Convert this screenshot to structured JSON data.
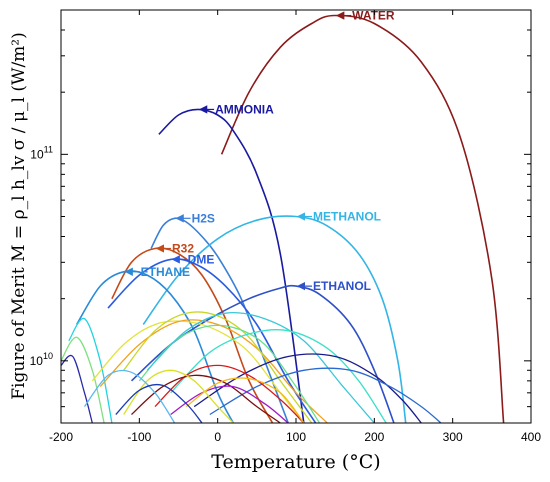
{
  "chart_data": {
    "type": "line",
    "xlabel": "Temperature (°C)",
    "ylabel": "Figure of Merit M = ρ_l h_lv σ / μ_l (W/m²)",
    "xlim": [
      -200,
      400
    ],
    "ylim": [
      5000000000.0,
      500000000000.0
    ],
    "yscale": "log",
    "grid": false,
    "legend": "none",
    "x_ticks": [
      -200,
      -100,
      0,
      100,
      200,
      300,
      400
    ],
    "x_tick_labels": [
      "-200",
      "-100",
      "0",
      "100",
      "200",
      "300",
      "400"
    ],
    "y_ticks": [
      10000000000.0,
      100000000000.0
    ],
    "series": [
      {
        "name": "WATER",
        "color": "#8b1a1a",
        "x": [
          5,
          40,
          80,
          120,
          150,
          200,
          260,
          310,
          350,
          365
        ],
        "y": [
          100000000000.0,
          200000000000.0,
          330000000000.0,
          430000000000.0,
          470000000000.0,
          430000000000.0,
          280000000000.0,
          120000000000.0,
          25000000000.0,
          5000000000.0
        ]
      },
      {
        "name": "AMMONIA",
        "color": "#1a1aa0",
        "x": [
          -75,
          -50,
          -25,
          0,
          20,
          50,
          80,
          110
        ],
        "y": [
          125000000000.0,
          155000000000.0,
          165000000000.0,
          155000000000.0,
          130000000000.0,
          80000000000.0,
          33000000000.0,
          5000000000.0
        ]
      },
      {
        "name": "H2S",
        "color": "#3a7fd8",
        "x": [
          -85,
          -70,
          -55,
          -40,
          -20,
          0,
          30,
          60,
          90
        ],
        "y": [
          35000000000.0,
          45000000000.0,
          49000000000.0,
          47000000000.0,
          40000000000.0,
          32000000000.0,
          20000000000.0,
          10000000000.0,
          5000000000.0
        ]
      },
      {
        "name": "METHANOL",
        "color": "#33b5e6",
        "x": [
          -95,
          -50,
          0,
          50,
          100,
          140,
          180,
          210,
          230,
          240
        ],
        "y": [
          15000000000.0,
          26000000000.0,
          39000000000.0,
          48000000000.0,
          50000000000.0,
          45000000000.0,
          33000000000.0,
          20000000000.0,
          10000000000.0,
          5000000000.0
        ]
      },
      {
        "name": "R32",
        "color": "#c44a1a",
        "x": [
          -135,
          -110,
          -80,
          -50,
          -20,
          10,
          40,
          70
        ],
        "y": [
          20000000000.0,
          30000000000.0,
          35000000000.0,
          33000000000.0,
          26000000000.0,
          16000000000.0,
          8000000000.0,
          5000000000.0
        ]
      },
      {
        "name": "DME",
        "color": "#2a5be0",
        "x": [
          -140,
          -100,
          -60,
          -25,
          10,
          50,
          90,
          125
        ],
        "y": [
          18000000000.0,
          26000000000.0,
          31000000000.0,
          29000000000.0,
          23000000000.0,
          15000000000.0,
          8000000000.0,
          5000000000.0
        ]
      },
      {
        "name": "ETHANE",
        "color": "#2a8ad8",
        "x": [
          -180,
          -150,
          -120,
          -90,
          -60,
          -30,
          0,
          20
        ],
        "y": [
          15000000000.0,
          23000000000.0,
          27000000000.0,
          26000000000.0,
          21000000000.0,
          14000000000.0,
          7000000000.0,
          5000000000.0
        ]
      },
      {
        "name": "ETHANOL",
        "color": "#2e50c8",
        "x": [
          -110,
          -60,
          -10,
          40,
          80,
          100,
          130,
          170,
          200,
          225
        ],
        "y": [
          8000000000.0,
          12000000000.0,
          16000000000.0,
          20000000000.0,
          22500000000.0,
          23000000000.0,
          21000000000.0,
          15000000000.0,
          9000000000.0,
          5000000000.0
        ]
      },
      {
        "name": "",
        "color": "#22d4e0",
        "x": [
          -190,
          -170,
          -150,
          -135
        ],
        "y": [
          12500000000.0,
          16000000000.0,
          10000000000.0,
          5000000000.0
        ]
      },
      {
        "name": "",
        "color": "#7fe07f",
        "x": [
          -200,
          -180,
          -160,
          -145
        ],
        "y": [
          10000000000.0,
          13000000000.0,
          9000000000.0,
          5000000000.0
        ]
      },
      {
        "name": "",
        "color": "#2a2aa8",
        "x": [
          -200,
          -185,
          -170,
          -160
        ],
        "y": [
          9500000000.0,
          10500000000.0,
          7000000000.0,
          5000000000.0
        ]
      },
      {
        "name": "",
        "color": "#e3e33a",
        "x": [
          -160,
          -120,
          -80,
          -40,
          0,
          40,
          80,
          110
        ],
        "y": [
          8000000000.0,
          12000000000.0,
          15000000000.0,
          15500000000.0,
          14000000000.0,
          11000000000.0,
          7000000000.0,
          5000000000.0
        ]
      },
      {
        "name": "",
        "color": "#f5a01a",
        "x": [
          -150,
          -100,
          -50,
          0,
          50,
          100,
          140
        ],
        "y": [
          7500000000.0,
          12000000000.0,
          15500000000.0,
          15000000000.0,
          11500000000.0,
          7000000000.0,
          5000000000.0
        ]
      },
      {
        "name": "",
        "color": "#c8d628",
        "x": [
          -120,
          -80,
          -40,
          0,
          40,
          80,
          120
        ],
        "y": [
          9000000000.0,
          14000000000.0,
          17000000000.0,
          16500000000.0,
          13000000000.0,
          8000000000.0,
          5000000000.0
        ]
      },
      {
        "name": "",
        "color": "#66e08c",
        "x": [
          -100,
          -60,
          -20,
          20,
          60,
          100,
          130
        ],
        "y": [
          8000000000.0,
          12000000000.0,
          14500000000.0,
          14500000000.0,
          12000000000.0,
          7500000000.0,
          5000000000.0
        ]
      },
      {
        "name": "",
        "color": "#3ac8d8",
        "x": [
          -90,
          -40,
          10,
          60,
          110,
          160,
          200
        ],
        "y": [
          9000000000.0,
          14000000000.0,
          17000000000.0,
          16000000000.0,
          12500000000.0,
          7500000000.0,
          5000000000.0
        ]
      },
      {
        "name": "",
        "color": "#3ae0c8",
        "x": [
          -60,
          -10,
          40,
          90,
          140,
          180,
          215
        ],
        "y": [
          7000000000.0,
          11000000000.0,
          13500000000.0,
          14000000000.0,
          11500000000.0,
          8000000000.0,
          5000000000.0
        ]
      },
      {
        "name": "",
        "color": "#1a1a8c",
        "x": [
          -30,
          30,
          90,
          150,
          200,
          235,
          260
        ],
        "y": [
          6000000000.0,
          8500000000.0,
          10500000000.0,
          10500000000.0,
          8500000000.0,
          6500000000.0,
          5000000000.0
        ]
      },
      {
        "name": "",
        "color": "#2a6ad0",
        "x": [
          -10,
          50,
          110,
          170,
          220,
          260,
          285
        ],
        "y": [
          5500000000.0,
          7500000000.0,
          9000000000.0,
          9000000000.0,
          7500000000.0,
          6000000000.0,
          5000000000.0
        ]
      },
      {
        "name": "",
        "color": "#d81a1a",
        "x": [
          -80,
          -40,
          0,
          40,
          80,
          110
        ],
        "y": [
          6000000000.0,
          8500000000.0,
          9500000000.0,
          8500000000.0,
          6500000000.0,
          5000000000.0
        ]
      },
      {
        "name": "",
        "color": "#7a0f0f",
        "x": [
          -110,
          -70,
          -30,
          10,
          50,
          80
        ],
        "y": [
          5500000000.0,
          7500000000.0,
          8500000000.0,
          7800000000.0,
          6000000000.0,
          5000000000.0
        ]
      },
      {
        "name": "",
        "color": "#a01ac8",
        "x": [
          -60,
          -20,
          20,
          60,
          90
        ],
        "y": [
          5500000000.0,
          7000000000.0,
          7500000000.0,
          6200000000.0,
          5000000000.0
        ]
      },
      {
        "name": "",
        "color": "#f5b81a",
        "x": [
          -40,
          0,
          40,
          80,
          110
        ],
        "y": [
          6000000000.0,
          7800000000.0,
          8200000000.0,
          7000000000.0,
          5000000000.0
        ]
      },
      {
        "name": "",
        "color": "#d8e028",
        "x": [
          -120,
          -90,
          -60,
          -30,
          0,
          20
        ],
        "y": [
          5500000000.0,
          8000000000.0,
          9000000000.0,
          8000000000.0,
          6000000000.0,
          5000000000.0
        ]
      },
      {
        "name": "",
        "color": "#5ab8f0",
        "x": [
          -170,
          -140,
          -110,
          -80,
          -55
        ],
        "y": [
          6000000000.0,
          8500000000.0,
          8800000000.0,
          7000000000.0,
          5000000000.0
        ]
      },
      {
        "name": "",
        "color": "#1a3ab0",
        "x": [
          -130,
          -100,
          -70,
          -40,
          -20
        ],
        "y": [
          5500000000.0,
          7200000000.0,
          7600000000.0,
          6200000000.0,
          5000000000.0
        ]
      }
    ],
    "annotations": [
      {
        "text": "WATER",
        "x": 150,
        "y": 470000000000.0,
        "color": "#8b1a1a"
      },
      {
        "text": "AMMONIA",
        "x": -25,
        "y": 165000000000.0,
        "color": "#1a1aa0"
      },
      {
        "text": "H2S",
        "x": -55,
        "y": 49000000000.0,
        "color": "#3a7fd8"
      },
      {
        "text": "METHANOL",
        "x": 100,
        "y": 50000000000.0,
        "color": "#33b5e6"
      },
      {
        "text": "R32",
        "x": -80,
        "y": 35000000000.0,
        "color": "#c44a1a"
      },
      {
        "text": "DME",
        "x": -60,
        "y": 31000000000.0,
        "color": "#2a5be0"
      },
      {
        "text": "ETHANE",
        "x": -120,
        "y": 27000000000.0,
        "color": "#2a8ad8"
      },
      {
        "text": "ETHANOL",
        "x": 100,
        "y": 23000000000.0,
        "color": "#2e50c8"
      }
    ]
  }
}
